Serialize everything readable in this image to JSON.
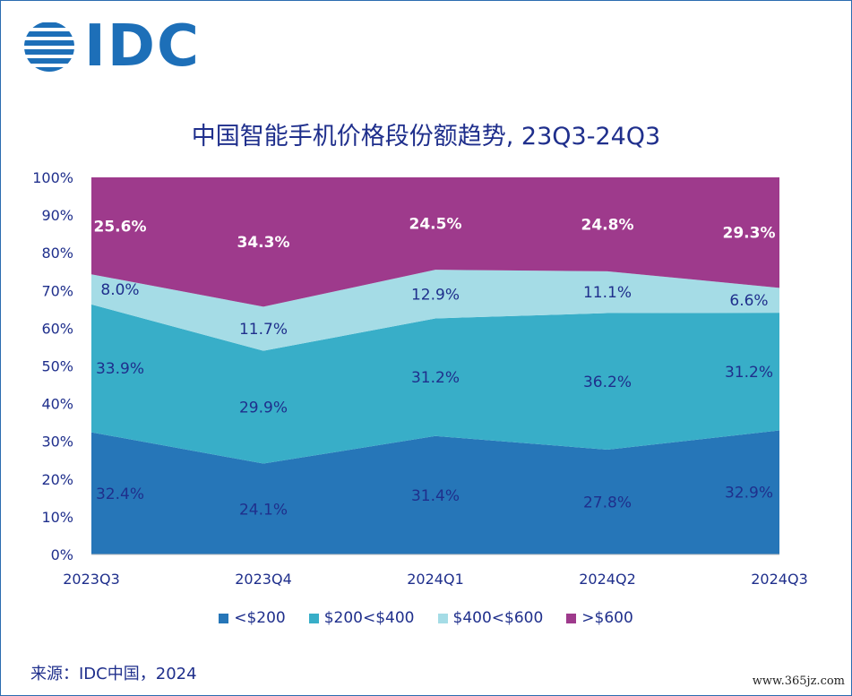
{
  "brand": {
    "logo_text": "IDC",
    "logo_icon": "idc-globe-icon",
    "color": "#1d6fb8"
  },
  "header": {
    "title": "中国智能手机价格段份额趋势, 23Q3-24Q3"
  },
  "chart_data": {
    "type": "area",
    "stacked": true,
    "normalized": true,
    "categories": [
      "2023Q3",
      "2023Q4",
      "2024Q1",
      "2024Q2",
      "2024Q3"
    ],
    "y_ticks": [
      "0%",
      "10%",
      "20%",
      "30%",
      "40%",
      "50%",
      "60%",
      "70%",
      "80%",
      "90%",
      "100%"
    ],
    "ylim": [
      0,
      100
    ],
    "legend_position": "bottom",
    "grid": false,
    "series": [
      {
        "name": "<$200",
        "color": "#2676b8",
        "values": [
          32.4,
          24.1,
          31.4,
          27.8,
          32.9
        ],
        "labels": [
          "32.4%",
          "24.1%",
          "31.4%",
          "27.8%",
          "32.9%"
        ],
        "label_color": "#1f2f8c",
        "label_bold": false
      },
      {
        "name": "$200<$400",
        "color": "#38aec8",
        "values": [
          33.9,
          29.9,
          31.2,
          36.2,
          31.2
        ],
        "labels": [
          "33.9%",
          "29.9%",
          "31.2%",
          "36.2%",
          "31.2%"
        ],
        "label_color": "#1f2f8c",
        "label_bold": false
      },
      {
        "name": "$400<$600",
        "color": "#a5dce6",
        "values": [
          8.0,
          11.7,
          12.9,
          11.1,
          6.6
        ],
        "labels": [
          "8.0%",
          "11.7%",
          "12.9%",
          "11.1%",
          "6.6%"
        ],
        "label_color": "#1f2f8c",
        "label_bold": false
      },
      {
        "name": ">$600",
        "color": "#9e3a8c",
        "values": [
          25.6,
          34.3,
          24.5,
          24.8,
          29.3
        ],
        "labels": [
          "25.6%",
          "34.3%",
          "24.5%",
          "24.8%",
          "29.3%"
        ],
        "label_color": "#ffffff",
        "label_bold": true
      }
    ]
  },
  "footer": {
    "source": "来源：IDC中国，2024",
    "watermark": "www.365jz.com"
  }
}
